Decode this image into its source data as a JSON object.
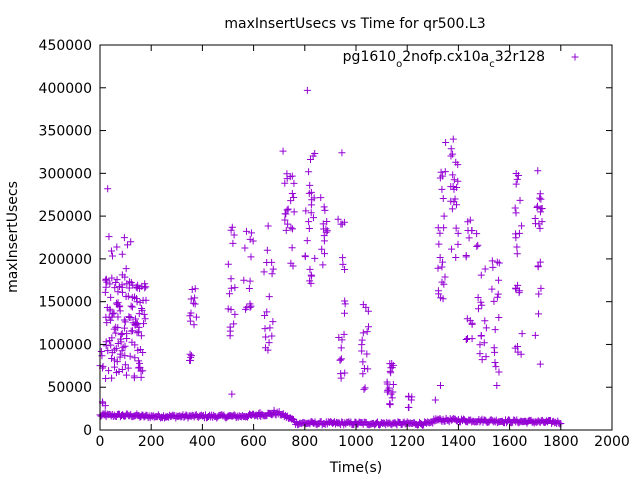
{
  "colors": {
    "series": "#9400d3",
    "axis": "#000000"
  },
  "chart_data": {
    "type": "scatter",
    "title": "maxInsertUsecs vs Time for qr500.L3",
    "xlabel": "Time(s)",
    "ylabel": "maxInsertUsecs",
    "xlim": [
      0,
      2000
    ],
    "ylim": [
      0,
      450000
    ],
    "grid": false,
    "legend_position": "top-right",
    "x_ticks": [
      0,
      200,
      400,
      600,
      800,
      1000,
      1200,
      1400,
      1600,
      1800,
      2000
    ],
    "x_tick_labels": [
      "0",
      "200",
      "400",
      "600",
      "800",
      "1000",
      "1200",
      "1400",
      "1600",
      "1800",
      "2000"
    ],
    "y_ticks": [
      0,
      50000,
      100000,
      150000,
      200000,
      250000,
      300000,
      350000,
      400000,
      450000
    ],
    "y_tick_labels": [
      "0",
      "50000",
      "100000",
      "150000",
      "200000",
      "250000",
      "300000",
      "350000",
      "400000",
      "450000"
    ],
    "legend": {
      "segments": [
        {
          "text": "pg1610",
          "sub": false
        },
        {
          "text": "o",
          "sub": true
        },
        {
          "text": "2nofp.cx10a",
          "sub": false
        },
        {
          "text": "c",
          "sub": true
        },
        {
          "text": "32r128",
          "sub": false
        }
      ]
    },
    "series": [
      {
        "name": "pg1610_o2nofp.cx10a_c32r128",
        "marker": "+",
        "baseline": {
          "x_start": 0,
          "x_end": 1800,
          "step": 4,
          "segments": [
            {
              "x0": 0,
              "x1": 150,
              "y0": 17000,
              "y1": 17000
            },
            {
              "x0": 150,
              "x1": 550,
              "y0": 16000,
              "y1": 16000
            },
            {
              "x0": 550,
              "x1": 700,
              "y0": 16000,
              "y1": 19500
            },
            {
              "x0": 700,
              "x1": 760,
              "y0": 19500,
              "y1": 11000
            },
            {
              "x0": 760,
              "x1": 1300,
              "y0": 8000,
              "y1": 7500
            },
            {
              "x0": 1300,
              "x1": 1800,
              "y0": 12000,
              "y1": 9000
            }
          ]
        },
        "clusters": [
          {
            "x": [
              0,
              25
            ],
            "y": [
              15000,
              95000
            ],
            "n": 8
          },
          {
            "x": [
              20,
              180
            ],
            "y": [
              60000,
              180000
            ],
            "n": 140
          },
          {
            "x": [
              40,
              120
            ],
            "y": [
              180000,
              230000
            ],
            "n": 8
          },
          {
            "x": [
              350,
              380
            ],
            "y": [
              80000,
              180000
            ],
            "n": 16
          },
          {
            "x": [
              500,
              530
            ],
            "y": [
              100000,
              240000
            ],
            "n": 16
          },
          {
            "x": [
              560,
              600
            ],
            "y": [
              120000,
              240000
            ],
            "n": 14
          },
          {
            "x": [
              640,
              680
            ],
            "y": [
              90000,
              250000
            ],
            "n": 18
          },
          {
            "x": [
              720,
              760
            ],
            "y": [
              190000,
              300000
            ],
            "n": 22
          },
          {
            "x": [
              800,
              840
            ],
            "y": [
              170000,
              330000
            ],
            "n": 24
          },
          {
            "x": [
              860,
              890
            ],
            "y": [
              170000,
              280000
            ],
            "n": 14
          },
          {
            "x": [
              930,
              960
            ],
            "y": [
              60000,
              260000
            ],
            "n": 20
          },
          {
            "x": [
              1020,
              1050
            ],
            "y": [
              40000,
              150000
            ],
            "n": 16
          },
          {
            "x": [
              1120,
              1150
            ],
            "y": [
              20000,
              80000
            ],
            "n": 20
          },
          {
            "x": [
              1200,
              1220
            ],
            "y": [
              25000,
              40000
            ],
            "n": 6
          },
          {
            "x": [
              1320,
              1350
            ],
            "y": [
              150000,
              310000
            ],
            "n": 22
          },
          {
            "x": [
              1370,
              1400
            ],
            "y": [
              190000,
              340000
            ],
            "n": 22
          },
          {
            "x": [
              1430,
              1460
            ],
            "y": [
              100000,
              260000
            ],
            "n": 16
          },
          {
            "x": [
              1470,
              1510
            ],
            "y": [
              80000,
              240000
            ],
            "n": 18
          },
          {
            "x": [
              1530,
              1560
            ],
            "y": [
              50000,
              200000
            ],
            "n": 16
          },
          {
            "x": [
              1620,
              1650
            ],
            "y": [
              70000,
              300000
            ],
            "n": 22
          },
          {
            "x": [
              1700,
              1730
            ],
            "y": [
              80000,
              310000
            ],
            "n": 20
          }
        ],
        "points": [
          [
            30,
            282000
          ],
          [
            35,
            226000
          ],
          [
            120,
            220000
          ],
          [
            810,
            397000
          ],
          [
            715,
            326000
          ],
          [
            945,
            324000
          ],
          [
            1380,
            340000
          ],
          [
            1350,
            336000
          ],
          [
            1710,
            303000
          ],
          [
            1630,
            293000
          ],
          [
            515,
            42000
          ],
          [
            625,
            20500
          ],
          [
            20,
            20000
          ],
          [
            680,
            23000
          ],
          [
            1330,
            52000
          ],
          [
            1550,
            52000
          ],
          [
            1310,
            35000
          ],
          [
            1720,
            77000
          ]
        ]
      }
    ]
  }
}
